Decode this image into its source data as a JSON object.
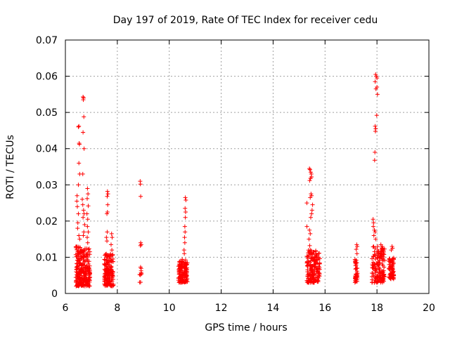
{
  "chart_data": {
    "type": "scatter",
    "title": "Day 197 of 2019, Rate Of TEC Index for receiver cedu",
    "xlabel": "GPS time / hours",
    "ylabel": "ROTI / TECUs",
    "xlim": [
      6,
      20
    ],
    "ylim": [
      0,
      0.07
    ],
    "x_ticks": [
      "6",
      "8",
      "10",
      "12",
      "14",
      "16",
      "18",
      "20"
    ],
    "y_ticks": [
      "0",
      "0.01",
      "0.02",
      "0.03",
      "0.04",
      "0.05",
      "0.06",
      "0.07"
    ],
    "grid": true,
    "marker": "+",
    "color": "#ff0000",
    "clusters": [
      {
        "x_range": [
          6.4,
          6.95
        ],
        "y_range": [
          0.002,
          0.013
        ],
        "count": 260
      },
      {
        "x_range": [
          7.5,
          7.85
        ],
        "y_range": [
          0.002,
          0.011
        ],
        "count": 150
      },
      {
        "x_range": [
          8.85,
          8.95
        ],
        "y_range": [
          0.002,
          0.0075
        ],
        "count": 10
      },
      {
        "x_range": [
          10.35,
          10.7
        ],
        "y_range": [
          0.003,
          0.0095
        ],
        "count": 140
      },
      {
        "x_range": [
          15.3,
          15.8
        ],
        "y_range": [
          0.003,
          0.012
        ],
        "count": 170
      },
      {
        "x_range": [
          17.15,
          17.25
        ],
        "y_range": [
          0.003,
          0.01
        ],
        "count": 45
      },
      {
        "x_range": [
          17.8,
          18.3
        ],
        "y_range": [
          0.003,
          0.013
        ],
        "count": 150
      },
      {
        "x_range": [
          18.45,
          18.65
        ],
        "y_range": [
          0.004,
          0.01
        ],
        "count": 75
      }
    ],
    "points": [
      {
        "x": 6.5,
        "y": 0.046
      },
      {
        "x": 6.52,
        "y": 0.0462
      },
      {
        "x": 6.53,
        "y": 0.0415
      },
      {
        "x": 6.54,
        "y": 0.0412
      },
      {
        "x": 6.52,
        "y": 0.036
      },
      {
        "x": 6.55,
        "y": 0.033
      },
      {
        "x": 6.5,
        "y": 0.03
      },
      {
        "x": 6.45,
        "y": 0.027
      },
      {
        "x": 6.44,
        "y": 0.0255
      },
      {
        "x": 6.46,
        "y": 0.024
      },
      {
        "x": 6.5,
        "y": 0.022
      },
      {
        "x": 6.48,
        "y": 0.0195
      },
      {
        "x": 6.47,
        "y": 0.018
      },
      {
        "x": 6.52,
        "y": 0.016
      },
      {
        "x": 6.55,
        "y": 0.015
      },
      {
        "x": 6.68,
        "y": 0.0543
      },
      {
        "x": 6.7,
        "y": 0.054
      },
      {
        "x": 6.69,
        "y": 0.0535
      },
      {
        "x": 6.71,
        "y": 0.0488
      },
      {
        "x": 6.68,
        "y": 0.0445
      },
      {
        "x": 6.72,
        "y": 0.04
      },
      {
        "x": 6.67,
        "y": 0.033
      },
      {
        "x": 6.65,
        "y": 0.026
      },
      {
        "x": 6.67,
        "y": 0.0245
      },
      {
        "x": 6.7,
        "y": 0.023
      },
      {
        "x": 6.72,
        "y": 0.022
      },
      {
        "x": 6.68,
        "y": 0.021
      },
      {
        "x": 6.74,
        "y": 0.019
      },
      {
        "x": 6.71,
        "y": 0.017
      },
      {
        "x": 6.69,
        "y": 0.016
      },
      {
        "x": 6.85,
        "y": 0.029
      },
      {
        "x": 6.87,
        "y": 0.0275
      },
      {
        "x": 6.84,
        "y": 0.0262
      },
      {
        "x": 6.88,
        "y": 0.0242
      },
      {
        "x": 6.83,
        "y": 0.022
      },
      {
        "x": 6.86,
        "y": 0.0205
      },
      {
        "x": 6.85,
        "y": 0.0185
      },
      {
        "x": 6.88,
        "y": 0.017
      },
      {
        "x": 6.84,
        "y": 0.0155
      },
      {
        "x": 6.86,
        "y": 0.014
      },
      {
        "x": 7.62,
        "y": 0.0282
      },
      {
        "x": 7.64,
        "y": 0.0275
      },
      {
        "x": 7.61,
        "y": 0.0268
      },
      {
        "x": 7.63,
        "y": 0.0245
      },
      {
        "x": 7.62,
        "y": 0.0225
      },
      {
        "x": 7.6,
        "y": 0.022
      },
      {
        "x": 7.61,
        "y": 0.017
      },
      {
        "x": 7.58,
        "y": 0.0155
      },
      {
        "x": 7.6,
        "y": 0.0145
      },
      {
        "x": 7.78,
        "y": 0.0165
      },
      {
        "x": 7.8,
        "y": 0.0155
      },
      {
        "x": 7.76,
        "y": 0.0135
      },
      {
        "x": 7.79,
        "y": 0.012
      },
      {
        "x": 8.88,
        "y": 0.031
      },
      {
        "x": 8.89,
        "y": 0.0302
      },
      {
        "x": 8.9,
        "y": 0.0268
      },
      {
        "x": 8.9,
        "y": 0.014
      },
      {
        "x": 8.92,
        "y": 0.0135
      },
      {
        "x": 8.89,
        "y": 0.0132
      },
      {
        "x": 10.62,
        "y": 0.0265
      },
      {
        "x": 10.64,
        "y": 0.0258
      },
      {
        "x": 10.61,
        "y": 0.0235
      },
      {
        "x": 10.63,
        "y": 0.0225
      },
      {
        "x": 10.62,
        "y": 0.021
      },
      {
        "x": 10.6,
        "y": 0.0185
      },
      {
        "x": 10.61,
        "y": 0.017
      },
      {
        "x": 10.59,
        "y": 0.0155
      },
      {
        "x": 10.6,
        "y": 0.014
      },
      {
        "x": 10.57,
        "y": 0.012
      },
      {
        "x": 10.58,
        "y": 0.011
      },
      {
        "x": 15.4,
        "y": 0.0345
      },
      {
        "x": 15.42,
        "y": 0.0342
      },
      {
        "x": 15.45,
        "y": 0.0335
      },
      {
        "x": 15.47,
        "y": 0.033
      },
      {
        "x": 15.44,
        "y": 0.0318
      },
      {
        "x": 15.41,
        "y": 0.0312
      },
      {
        "x": 15.48,
        "y": 0.0322
      },
      {
        "x": 15.46,
        "y": 0.0275
      },
      {
        "x": 15.48,
        "y": 0.027
      },
      {
        "x": 15.43,
        "y": 0.0265
      },
      {
        "x": 15.3,
        "y": 0.025
      },
      {
        "x": 15.52,
        "y": 0.0245
      },
      {
        "x": 15.5,
        "y": 0.023
      },
      {
        "x": 15.48,
        "y": 0.022
      },
      {
        "x": 15.45,
        "y": 0.021
      },
      {
        "x": 15.3,
        "y": 0.0185
      },
      {
        "x": 15.4,
        "y": 0.0175
      },
      {
        "x": 15.43,
        "y": 0.0165
      },
      {
        "x": 15.38,
        "y": 0.015
      },
      {
        "x": 15.41,
        "y": 0.0132
      },
      {
        "x": 17.95,
        "y": 0.0605
      },
      {
        "x": 17.97,
        "y": 0.06
      },
      {
        "x": 18.0,
        "y": 0.0595
      },
      {
        "x": 17.93,
        "y": 0.0585
      },
      {
        "x": 18.0,
        "y": 0.057
      },
      {
        "x": 17.96,
        "y": 0.0565
      },
      {
        "x": 18.02,
        "y": 0.055
      },
      {
        "x": 17.99,
        "y": 0.0492
      },
      {
        "x": 17.93,
        "y": 0.0462
      },
      {
        "x": 17.95,
        "y": 0.0455
      },
      {
        "x": 17.94,
        "y": 0.0448
      },
      {
        "x": 17.92,
        "y": 0.039
      },
      {
        "x": 17.91,
        "y": 0.0368
      },
      {
        "x": 17.85,
        "y": 0.0205
      },
      {
        "x": 17.87,
        "y": 0.0195
      },
      {
        "x": 17.86,
        "y": 0.0185
      },
      {
        "x": 17.9,
        "y": 0.0175
      },
      {
        "x": 17.93,
        "y": 0.017
      },
      {
        "x": 17.88,
        "y": 0.016
      },
      {
        "x": 17.95,
        "y": 0.015
      },
      {
        "x": 17.22,
        "y": 0.0135
      },
      {
        "x": 17.24,
        "y": 0.013
      },
      {
        "x": 17.2,
        "y": 0.0122
      },
      {
        "x": 17.23,
        "y": 0.011
      },
      {
        "x": 18.15,
        "y": 0.0135
      },
      {
        "x": 18.2,
        "y": 0.013
      },
      {
        "x": 18.22,
        "y": 0.0125
      },
      {
        "x": 18.58,
        "y": 0.013
      },
      {
        "x": 18.6,
        "y": 0.0125
      },
      {
        "x": 18.55,
        "y": 0.012
      }
    ]
  }
}
